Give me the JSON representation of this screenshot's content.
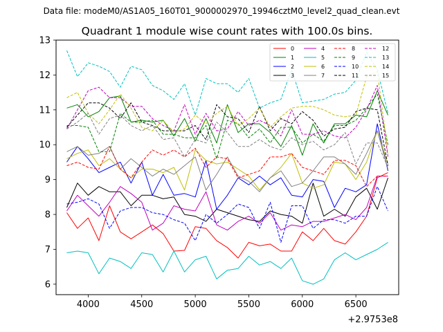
{
  "chart_data": {
    "type": "line",
    "suptitle": "Data file: modeM0/AS1A05_160T01_9000002970_19946cztM0_level2_quad_clean.evt",
    "title": "Quadrant 1 module wise count rates with 100.0s bins.",
    "xlabel": "",
    "ylabel": "",
    "x_offset_label": "+2.9753e8",
    "xlim": [
      3700,
      6900
    ],
    "ylim": [
      5.7,
      13.0
    ],
    "xticks": [
      4000,
      4500,
      5000,
      5500,
      6000,
      6500
    ],
    "xtick_labels": [
      "4000",
      "4500",
      "5000",
      "5500",
      "6000",
      "6500"
    ],
    "yticks": [
      6,
      7,
      8,
      9,
      10,
      11,
      12,
      13
    ],
    "ytick_labels": [
      "6",
      "7",
      "8",
      "9",
      "10",
      "11",
      "12",
      "13"
    ],
    "grid": false,
    "legend_position": "top-right",
    "x": [
      3800,
      3900,
      4000,
      4100,
      4200,
      4300,
      4400,
      4500,
      4600,
      4700,
      4800,
      4900,
      5000,
      5100,
      5200,
      5300,
      5400,
      5500,
      5600,
      5700,
      5800,
      5900,
      6000,
      6100,
      6200,
      6300,
      6400,
      6500,
      6600,
      6700,
      6800
    ],
    "series": [
      {
        "name": "0",
        "color": "#ff0000",
        "dash": "solid",
        "values": [
          8.05,
          7.6,
          7.9,
          7.25,
          8.25,
          7.5,
          7.3,
          7.5,
          7.7,
          7.45,
          6.95,
          6.97,
          7.65,
          7.6,
          7.25,
          7.05,
          6.75,
          7.2,
          7.1,
          7.15,
          6.95,
          6.95,
          7.5,
          7.25,
          7.6,
          7.25,
          7.15,
          7.5,
          7.95,
          9.05,
          9.2
        ]
      },
      {
        "name": "1",
        "color": "#008000",
        "dash": "solid",
        "values": [
          11.05,
          11.15,
          10.8,
          10.95,
          11.35,
          11.4,
          10.65,
          10.7,
          10.65,
          10.7,
          10.25,
          10.75,
          10.1,
          10.75,
          10.05,
          11.15,
          10.35,
          10.6,
          10.6,
          10.35,
          9.95,
          10.55,
          9.7,
          10.6,
          10.05,
          10.6,
          10.6,
          10.85,
          10.8,
          11.55,
          10.85
        ]
      },
      {
        "name": "2",
        "color": "#0000ff",
        "dash": "solid",
        "values": [
          9.5,
          9.95,
          9.6,
          9.2,
          9.35,
          9.5,
          8.9,
          9.5,
          8.55,
          9.15,
          8.55,
          8.6,
          8.5,
          9.55,
          8.15,
          8.55,
          9.05,
          8.85,
          9.1,
          8.85,
          9.05,
          8.55,
          8.5,
          9.0,
          8.95,
          8.2,
          8.75,
          8.65,
          8.85,
          10.6,
          9.25
        ]
      },
      {
        "name": "3",
        "color": "#000000",
        "dash": "solid",
        "values": [
          8.2,
          8.9,
          8.55,
          8.8,
          8.65,
          8.65,
          8.25,
          8.55,
          8.55,
          8.45,
          8.5,
          8.0,
          7.95,
          7.8,
          8.15,
          8.05,
          7.95,
          7.85,
          7.8,
          8.1,
          8.0,
          7.95,
          7.75,
          8.9,
          7.95,
          8.15,
          7.95,
          8.5,
          8.75,
          8.15,
          9.05
        ]
      },
      {
        "name": "4",
        "color": "#bf00bf",
        "dash": "solid",
        "values": [
          8.1,
          8.55,
          8.25,
          7.95,
          8.35,
          8.8,
          8.6,
          8.35,
          7.55,
          7.75,
          8.25,
          8.15,
          8.1,
          8.65,
          7.7,
          7.55,
          7.8,
          7.95,
          7.75,
          8.05,
          7.55,
          7.7,
          7.65,
          7.8,
          7.8,
          7.9,
          8.0,
          7.85,
          8.2,
          9.1,
          9.1
        ]
      },
      {
        "name": "5",
        "color": "#00bfbf",
        "dash": "solid",
        "values": [
          6.9,
          6.95,
          6.9,
          6.3,
          6.75,
          6.65,
          6.45,
          6.9,
          6.85,
          6.35,
          6.95,
          6.35,
          6.7,
          6.8,
          6.15,
          6.4,
          6.45,
          6.8,
          6.55,
          6.65,
          6.45,
          6.75,
          6.1,
          6.0,
          6.15,
          6.7,
          6.9,
          6.7,
          6.85,
          7.0,
          7.2
        ]
      },
      {
        "name": "6",
        "color": "#bfbf00",
        "dash": "solid",
        "values": [
          9.6,
          9.75,
          9.85,
          9.4,
          9.6,
          9.3,
          9.05,
          9.3,
          9.3,
          9.2,
          9.35,
          8.7,
          9.85,
          9.55,
          9.45,
          9.5,
          9.3,
          9.1,
          8.7,
          9.05,
          9.35,
          9.75,
          8.9,
          8.75,
          8.85,
          9.5,
          9.45,
          9.0,
          9.5,
          10.4,
          9.45
        ]
      },
      {
        "name": "7",
        "color": "#808080",
        "dash": "solid",
        "values": [
          9.8,
          9.95,
          9.7,
          9.75,
          9.95,
          9.3,
          9.6,
          9.35,
          9.1,
          9.3,
          9.15,
          9.4,
          9.65,
          8.7,
          9.15,
          9.65,
          9.1,
          8.95,
          8.65,
          9.05,
          9.25,
          8.8,
          8.9,
          9.25,
          9.65,
          9.65,
          9.45,
          9.15,
          9.75,
          10.4,
          9.3
        ]
      },
      {
        "name": "8",
        "color": "#ff0000",
        "dash": "dashed",
        "values": [
          9.4,
          9.5,
          9.35,
          9.3,
          9.95,
          9.3,
          9.05,
          9.5,
          9.85,
          9.7,
          9.85,
          9.65,
          9.9,
          9.35,
          9.65,
          9.6,
          9.05,
          9.15,
          9.25,
          9.65,
          9.65,
          9.75,
          9.35,
          9.25,
          9.15,
          9.55,
          9.55,
          9.4,
          8.8,
          9.1,
          9.1
        ]
      },
      {
        "name": "9",
        "color": "#008000",
        "dash": "dashed",
        "values": [
          10.55,
          10.55,
          10.5,
          9.8,
          9.8,
          10.9,
          10.65,
          10.65,
          10.7,
          10.3,
          10.3,
          10.2,
          10.2,
          10.55,
          9.6,
          10.7,
          10.6,
          10.2,
          10.45,
          10.05,
          10.5,
          10.5,
          10.05,
          10.3,
          10.1,
          10.55,
          10.55,
          10.7,
          11.05,
          11.45,
          10.0
        ]
      },
      {
        "name": "10",
        "color": "#0000ff",
        "dash": "dashed",
        "values": [
          8.3,
          8.35,
          8.45,
          8.3,
          7.6,
          8.1,
          8.2,
          8.2,
          8.05,
          8.0,
          7.85,
          7.75,
          7.25,
          8.0,
          7.75,
          8.0,
          8.3,
          8.2,
          7.6,
          8.35,
          7.2,
          8.25,
          8.25,
          7.6,
          7.85,
          7.85,
          7.75,
          7.95,
          7.95,
          8.8,
          8.1
        ]
      },
      {
        "name": "11",
        "color": "#000000",
        "dash": "dashed",
        "values": [
          10.5,
          10.85,
          11.2,
          11.2,
          11.05,
          10.75,
          11.2,
          10.65,
          10.55,
          10.4,
          10.4,
          10.4,
          10.55,
          10.15,
          11.15,
          10.8,
          10.75,
          10.35,
          11.1,
          10.4,
          10.75,
          10.6,
          10.95,
          10.7,
          10.25,
          10.45,
          10.5,
          10.95,
          11.05,
          11.0,
          9.4
        ]
      },
      {
        "name": "12",
        "color": "#bf00bf",
        "dash": "dashed",
        "values": [
          10.45,
          11.0,
          11.55,
          11.65,
          11.35,
          11.35,
          11.1,
          11.1,
          10.75,
          10.55,
          10.4,
          11.15,
          10.3,
          10.9,
          10.4,
          10.45,
          10.95,
          10.55,
          10.7,
          10.55,
          10.25,
          11.0,
          10.3,
          10.3,
          10.4,
          10.25,
          10.2,
          10.5,
          11.0,
          11.7,
          9.65
        ]
      },
      {
        "name": "13",
        "color": "#00bfbf",
        "dash": "dashed",
        "values": [
          12.7,
          11.95,
          12.35,
          12.25,
          12.1,
          11.65,
          12.25,
          12.15,
          11.7,
          11.55,
          11.3,
          11.75,
          10.85,
          11.9,
          11.75,
          11.75,
          11.5,
          11.9,
          11.05,
          11.2,
          11.3,
          12.15,
          11.2,
          11.25,
          11.3,
          11.45,
          11.5,
          11.85,
          12.65,
          12.15,
          10.9
        ]
      },
      {
        "name": "14",
        "color": "#bfbf00",
        "dash": "dashed",
        "values": [
          11.35,
          11.5,
          10.9,
          10.6,
          11.0,
          11.45,
          11.05,
          10.5,
          10.4,
          10.7,
          10.35,
          10.45,
          10.85,
          10.6,
          10.9,
          11.1,
          10.55,
          10.75,
          11.05,
          10.5,
          10.8,
          11.05,
          11.1,
          11.1,
          11.0,
          10.85,
          10.8,
          10.85,
          11.95,
          12.1,
          9.75
        ]
      },
      {
        "name": "15",
        "color": "#808080",
        "dash": "dashed",
        "values": [
          10.45,
          10.65,
          10.9,
          10.3,
          10.75,
          10.85,
          10.55,
          10.4,
          10.55,
          10.15,
          10.2,
          9.65,
          10.15,
          10.05,
          10.65,
          10.35,
          9.95,
          9.95,
          10.15,
          9.95,
          9.85,
          10.2,
          10.0,
          10.1,
          9.85,
          10.0,
          10.35,
          9.45,
          10.05,
          10.05,
          9.35
        ]
      }
    ]
  }
}
